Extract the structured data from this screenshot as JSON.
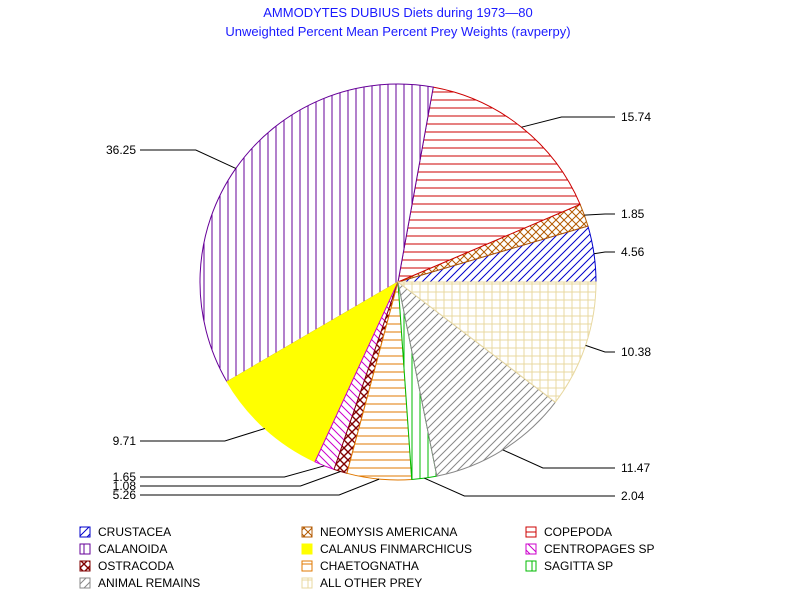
{
  "chart_data": {
    "type": "pie",
    "title": "AMMODYTES DUBIUS Diets during 1973—80",
    "subtitle": "Unweighted Percent Mean Percent Prey  Weights (ravperpy)",
    "slices": [
      {
        "name": "CRUSTACEA",
        "value": 4.56,
        "label": "4.56",
        "color": "#0000cc",
        "pattern": "diag-up"
      },
      {
        "name": "NEOMYSIS AMERICANA",
        "value": 1.85,
        "label": "1.85",
        "color": "#b35900",
        "pattern": "cross-diag"
      },
      {
        "name": "COPEPODA",
        "value": 15.74,
        "label": "15.74",
        "color": "#cc0000",
        "pattern": "horiz"
      },
      {
        "name": "CALANOIDA",
        "value": 36.25,
        "label": "36.25",
        "color": "#660099",
        "pattern": "vert"
      },
      {
        "name": "CALANUS FINMARCHICUS",
        "value": 9.71,
        "label": "9.71",
        "color": "#ffff00",
        "pattern": "solid"
      },
      {
        "name": "CENTROPAGES SP",
        "value": 1.65,
        "label": "1.65",
        "color": "#cc00cc",
        "pattern": "diag-down"
      },
      {
        "name": "OSTRACODA",
        "value": 1.08,
        "label": "1.08",
        "color": "#800000",
        "pattern": "cross-diag-dense"
      },
      {
        "name": "CHAETOGNATHA",
        "value": 5.26,
        "label": "5.26",
        "color": "#e07800",
        "pattern": "horiz"
      },
      {
        "name": "SAGITTA SP",
        "value": 2.04,
        "label": "2.04",
        "color": "#00bb00",
        "pattern": "vert"
      },
      {
        "name": "ANIMAL REMAINS",
        "value": 11.47,
        "label": "11.47",
        "color": "#888888",
        "pattern": "diag-up"
      },
      {
        "name": "ALL OTHER PREY",
        "value": 10.38,
        "label": "10.38",
        "color": "#e8d8a0",
        "pattern": "grid"
      }
    ],
    "legend_placement": "bottom"
  }
}
